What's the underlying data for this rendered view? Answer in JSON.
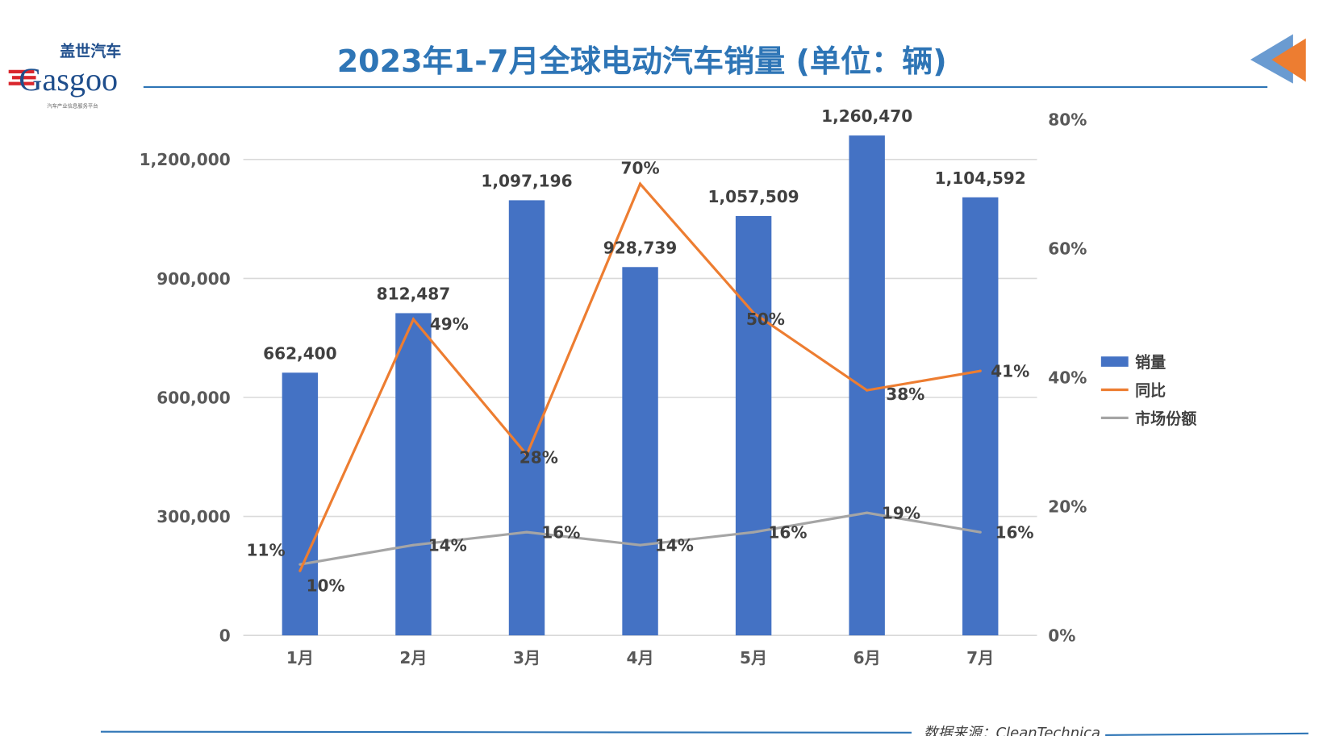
{
  "title": "2023年1-7月全球电动汽车销量 (单位：辆)",
  "logo": {
    "cn": "盖世汽车",
    "en": "Gasgoo",
    "tagline": "汽车产业信息服务平台"
  },
  "watermark": {
    "cn": "盖世汽车",
    "en": "Gasgoo",
    "tagline": "汽车产业信息服务平台"
  },
  "source": "数据来源：CleanTechnica",
  "colors": {
    "bar": "#4472C4",
    "yoy": "#ED7D31",
    "share": "#A5A5A5",
    "title": "#2E75B6",
    "rule": "#2E75B6"
  },
  "chart_data": {
    "type": "bar",
    "title": "2023年1-7月全球电动汽车销量 (单位：辆)",
    "categories": [
      "1月",
      "2月",
      "3月",
      "4月",
      "5月",
      "6月",
      "7月"
    ],
    "series": [
      {
        "name": "销量",
        "type": "bar",
        "axis": "left",
        "values": [
          662400,
          812487,
          1097196,
          928739,
          1057509,
          1260470,
          1104592
        ],
        "labels": [
          "662,400",
          "812,487",
          "1,097,196",
          "928,739",
          "1,057,509",
          "1,260,470",
          "1,104,592"
        ]
      },
      {
        "name": "同比",
        "type": "line",
        "axis": "right",
        "values": [
          10,
          49,
          28,
          70,
          50,
          38,
          41
        ],
        "labels": [
          "10%",
          "49%",
          "28%",
          "70%",
          "50%",
          "38%",
          "41%"
        ]
      },
      {
        "name": "市场份额",
        "type": "line",
        "axis": "right",
        "values": [
          11,
          14,
          16,
          14,
          16,
          19,
          16
        ],
        "labels": [
          "11%",
          "14%",
          "16%",
          "14%",
          "16%",
          "19%",
          "16%"
        ]
      }
    ],
    "left_axis": {
      "range": [
        0,
        1200000
      ],
      "ticks": [
        "0",
        "300,000",
        "600,000",
        "900,000",
        "1,200,000"
      ]
    },
    "right_axis": {
      "range": [
        0,
        80
      ],
      "unit": "%",
      "ticks": [
        "0%",
        "20%",
        "40%",
        "60%",
        "80%"
      ]
    },
    "grid": true,
    "legend": "right"
  }
}
